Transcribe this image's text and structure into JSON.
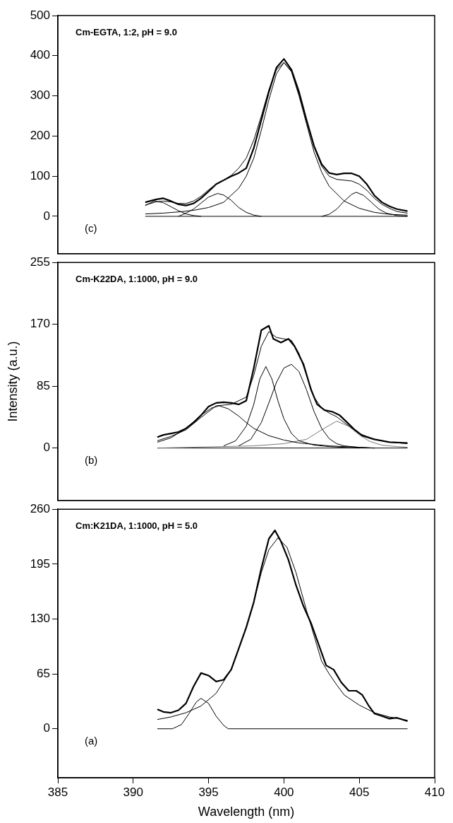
{
  "chart_data": [
    {
      "type": "line",
      "annotations": [
        "Cm-EGTA, 1:2, pH = 9.0",
        "(c)"
      ],
      "xlim": [
        385,
        410
      ],
      "xticks": [
        385,
        390,
        395,
        400,
        405,
        410
      ],
      "ylim": [
        -93,
        500
      ],
      "yticks": [
        0,
        100,
        200,
        300,
        400,
        500
      ],
      "tick_labels": "y",
      "grid": false,
      "marker": "none",
      "series": [
        {
          "color": "#000000",
          "x": [
            390.8,
            391.5,
            392,
            392.5,
            393,
            393.5,
            394,
            394.5,
            395,
            395.5,
            396,
            396.5,
            397,
            397.5,
            398,
            398.5,
            399,
            399.5,
            400,
            400.5,
            401,
            401.5,
            402,
            402.5,
            403,
            403.5,
            404,
            404.5,
            405,
            405.5,
            406,
            406.5,
            407,
            407.5,
            408.2
          ],
          "values": [
            35,
            42,
            45,
            38,
            30,
            27,
            32,
            45,
            62,
            80,
            90,
            100,
            108,
            120,
            170,
            240,
            310,
            370,
            392,
            365,
            310,
            240,
            175,
            130,
            108,
            104,
            107,
            107,
            100,
            80,
            52,
            35,
            25,
            18,
            13
          ]
        },
        {
          "color": "#000000",
          "x": [
            390.8,
            391.5,
            392,
            392.5,
            393,
            393.5,
            394,
            394.5,
            395,
            395.5,
            396,
            396.5,
            397,
            397.5,
            398,
            398.5,
            399,
            399.5,
            400,
            400.5,
            401,
            401.5,
            402,
            402.5,
            403,
            403.5,
            404,
            404.5,
            405,
            405.5,
            406,
            406.5,
            407,
            407.5,
            408.2
          ],
          "values": [
            28,
            36,
            38,
            36,
            32,
            32,
            38,
            50,
            66,
            80,
            90,
            102,
            120,
            145,
            190,
            250,
            315,
            365,
            383,
            362,
            305,
            238,
            172,
            125,
            100,
            92,
            90,
            88,
            80,
            65,
            45,
            30,
            20,
            12,
            8
          ]
        },
        {
          "color": "#000000",
          "x": [
            390.8,
            392,
            393,
            394,
            395,
            396,
            397,
            397.5,
            398,
            398.5,
            399,
            399.5,
            400,
            400.5,
            401,
            401.5,
            402,
            402.5,
            403,
            404,
            405,
            406,
            407,
            408.2
          ],
          "values": [
            6,
            8,
            11,
            15,
            22,
            35,
            70,
            100,
            145,
            215,
            290,
            355,
            383,
            360,
            300,
            230,
            160,
            110,
            75,
            38,
            20,
            10,
            5,
            3
          ]
        },
        {
          "color": "#000000",
          "x": [
            390.8,
            391.4,
            392,
            392.5,
            393,
            393.5,
            394,
            394.5
          ],
          "values": [
            27,
            38,
            34,
            24,
            14,
            6,
            2,
            0
          ]
        },
        {
          "color": "#000000",
          "x": [
            393,
            393.5,
            394,
            394.5,
            395,
            395.6,
            396,
            396.5,
            397,
            397.5,
            398,
            398.5
          ],
          "values": [
            0,
            8,
            18,
            33,
            48,
            57,
            53,
            40,
            22,
            10,
            3,
            0
          ]
        },
        {
          "color": "#000000",
          "x": [
            402.5,
            403,
            403.5,
            404,
            404.5,
            404.8,
            405.3,
            405.8,
            406.3,
            406.8,
            407.5,
            408.2
          ],
          "values": [
            0,
            5,
            18,
            38,
            55,
            60,
            52,
            35,
            18,
            8,
            2,
            0
          ]
        },
        {
          "color": "#000000",
          "x": [
            390.8,
            408.2
          ],
          "values": [
            0,
            0
          ]
        }
      ]
    },
    {
      "type": "line",
      "ylabel": "Intensity (a.u.)",
      "annotations": [
        "Cm-K22DA, 1:1000, pH = 9.0",
        "(b)"
      ],
      "xlim": [
        385,
        410
      ],
      "xticks": [
        385,
        390,
        395,
        400,
        405,
        410
      ],
      "ylim": [
        -72,
        255
      ],
      "yticks": [
        0,
        85,
        170,
        255
      ],
      "tick_labels": "y",
      "grid": false,
      "marker": "none",
      "series": [
        {
          "color": "#000000",
          "x": [
            391.6,
            392,
            392.5,
            393,
            393.5,
            394,
            394.5,
            395,
            395.5,
            396,
            396.5,
            397,
            397.5,
            398,
            398.5,
            399,
            399.3,
            399.8,
            400.3,
            400.7,
            401.3,
            401.8,
            402.2,
            402.7,
            403.2,
            403.7,
            404.2,
            404.7,
            405.2,
            406,
            407,
            408.2
          ],
          "values": [
            15,
            18,
            20,
            22,
            27,
            35,
            45,
            57,
            62,
            63,
            62,
            60,
            65,
            110,
            162,
            168,
            150,
            145,
            150,
            140,
            115,
            80,
            60,
            52,
            50,
            45,
            35,
            25,
            17,
            12,
            8,
            7
          ]
        },
        {
          "color": "#000000",
          "x": [
            391.6,
            392.5,
            393.5,
            394.5,
            395.5,
            396.5,
            397.5,
            398,
            398.5,
            399,
            399.5,
            400,
            400.5,
            401,
            401.5,
            402,
            402.5,
            403,
            403.5,
            404,
            405,
            406,
            407,
            408.2
          ],
          "values": [
            10,
            16,
            25,
            42,
            58,
            60,
            70,
            100,
            140,
            160,
            152,
            150,
            148,
            130,
            100,
            70,
            55,
            48,
            43,
            35,
            20,
            12,
            8,
            6
          ]
        },
        {
          "color": "#000000",
          "x": [
            391.6,
            392.5,
            393.5,
            394.5,
            395.2,
            395.7,
            396.3,
            397,
            397.5,
            398,
            399,
            400,
            401,
            402,
            403,
            404,
            405,
            406
          ],
          "values": [
            8,
            14,
            27,
            45,
            55,
            58,
            54,
            44,
            35,
            27,
            17,
            11,
            7,
            5,
            3,
            2,
            1,
            0
          ]
        },
        {
          "color": "#000000",
          "x": [
            396,
            396.8,
            397.5,
            398,
            398.4,
            398.8,
            399.2,
            399.6,
            400,
            400.5,
            401,
            402,
            403,
            404,
            405
          ],
          "values": [
            3,
            10,
            30,
            60,
            95,
            112,
            95,
            65,
            40,
            20,
            10,
            4,
            2,
            1,
            0
          ]
        },
        {
          "color": "#000000",
          "x": [
            397,
            397.8,
            398.5,
            399,
            399.5,
            400,
            400.5,
            401,
            401.5,
            402,
            402.5,
            403,
            403.5,
            404,
            405,
            406
          ],
          "values": [
            3,
            12,
            35,
            62,
            90,
            110,
            115,
            105,
            80,
            50,
            27,
            13,
            6,
            3,
            1,
            0
          ]
        },
        {
          "color": "#777777",
          "x": [
            391.6,
            398,
            400,
            401.5,
            402.5,
            403.5,
            404.3,
            405,
            405.7,
            406.5,
            407.5,
            408.2
          ],
          "values": [
            0,
            3,
            6,
            12,
            25,
            37,
            30,
            18,
            9,
            4,
            2,
            1
          ]
        },
        {
          "color": "#000000",
          "x": [
            391.6,
            408.2
          ],
          "values": [
            0,
            0
          ]
        }
      ]
    },
    {
      "type": "line",
      "xlabel": "Wavelength (nm)",
      "annotations": [
        "Cm:K21DA, 1:1000, pH = 5.0",
        "(a)"
      ],
      "xlim": [
        385,
        410
      ],
      "xticks": [
        385,
        390,
        395,
        400,
        405,
        410
      ],
      "ylim": [
        -58,
        260
      ],
      "yticks": [
        0,
        65,
        130,
        195,
        260
      ],
      "grid": false,
      "marker": "none",
      "series": [
        {
          "color": "#000000",
          "x": [
            391.6,
            392,
            392.5,
            393,
            393.5,
            394,
            394.5,
            395,
            395.5,
            396,
            396.5,
            397,
            397.5,
            398,
            398.5,
            399,
            399.4,
            399.8,
            400.3,
            400.8,
            401.3,
            401.8,
            402.3,
            402.8,
            403.3,
            403.8,
            404.3,
            404.8,
            405.2,
            405.6,
            406,
            406.5,
            407,
            407.5,
            408.2
          ],
          "values": [
            23,
            20,
            19,
            22,
            30,
            50,
            66,
            63,
            56,
            58,
            70,
            95,
            120,
            150,
            190,
            225,
            235,
            222,
            200,
            170,
            145,
            125,
            100,
            75,
            70,
            55,
            45,
            45,
            40,
            28,
            18,
            15,
            12,
            13,
            9
          ]
        },
        {
          "color": "#000000",
          "x": [
            391.6,
            392.5,
            393.5,
            394.5,
            395.5,
            396.5,
            397.5,
            398,
            398.5,
            399,
            399.6,
            400.2,
            400.8,
            401.5,
            402,
            402.5,
            403,
            403.5,
            404,
            405,
            406,
            407,
            408.2
          ],
          "values": [
            11,
            14,
            19,
            27,
            42,
            70,
            120,
            150,
            185,
            212,
            226,
            215,
            185,
            140,
            110,
            80,
            65,
            52,
            40,
            28,
            19,
            14,
            10
          ]
        },
        {
          "color": "#000000",
          "x": [
            391.6,
            392.6,
            393.2,
            393.7,
            394.2,
            394.5,
            395,
            395.5,
            396,
            396.3,
            408.2
          ],
          "values": [
            0,
            0,
            5,
            18,
            32,
            36,
            30,
            15,
            4,
            0,
            0
          ]
        }
      ]
    }
  ]
}
